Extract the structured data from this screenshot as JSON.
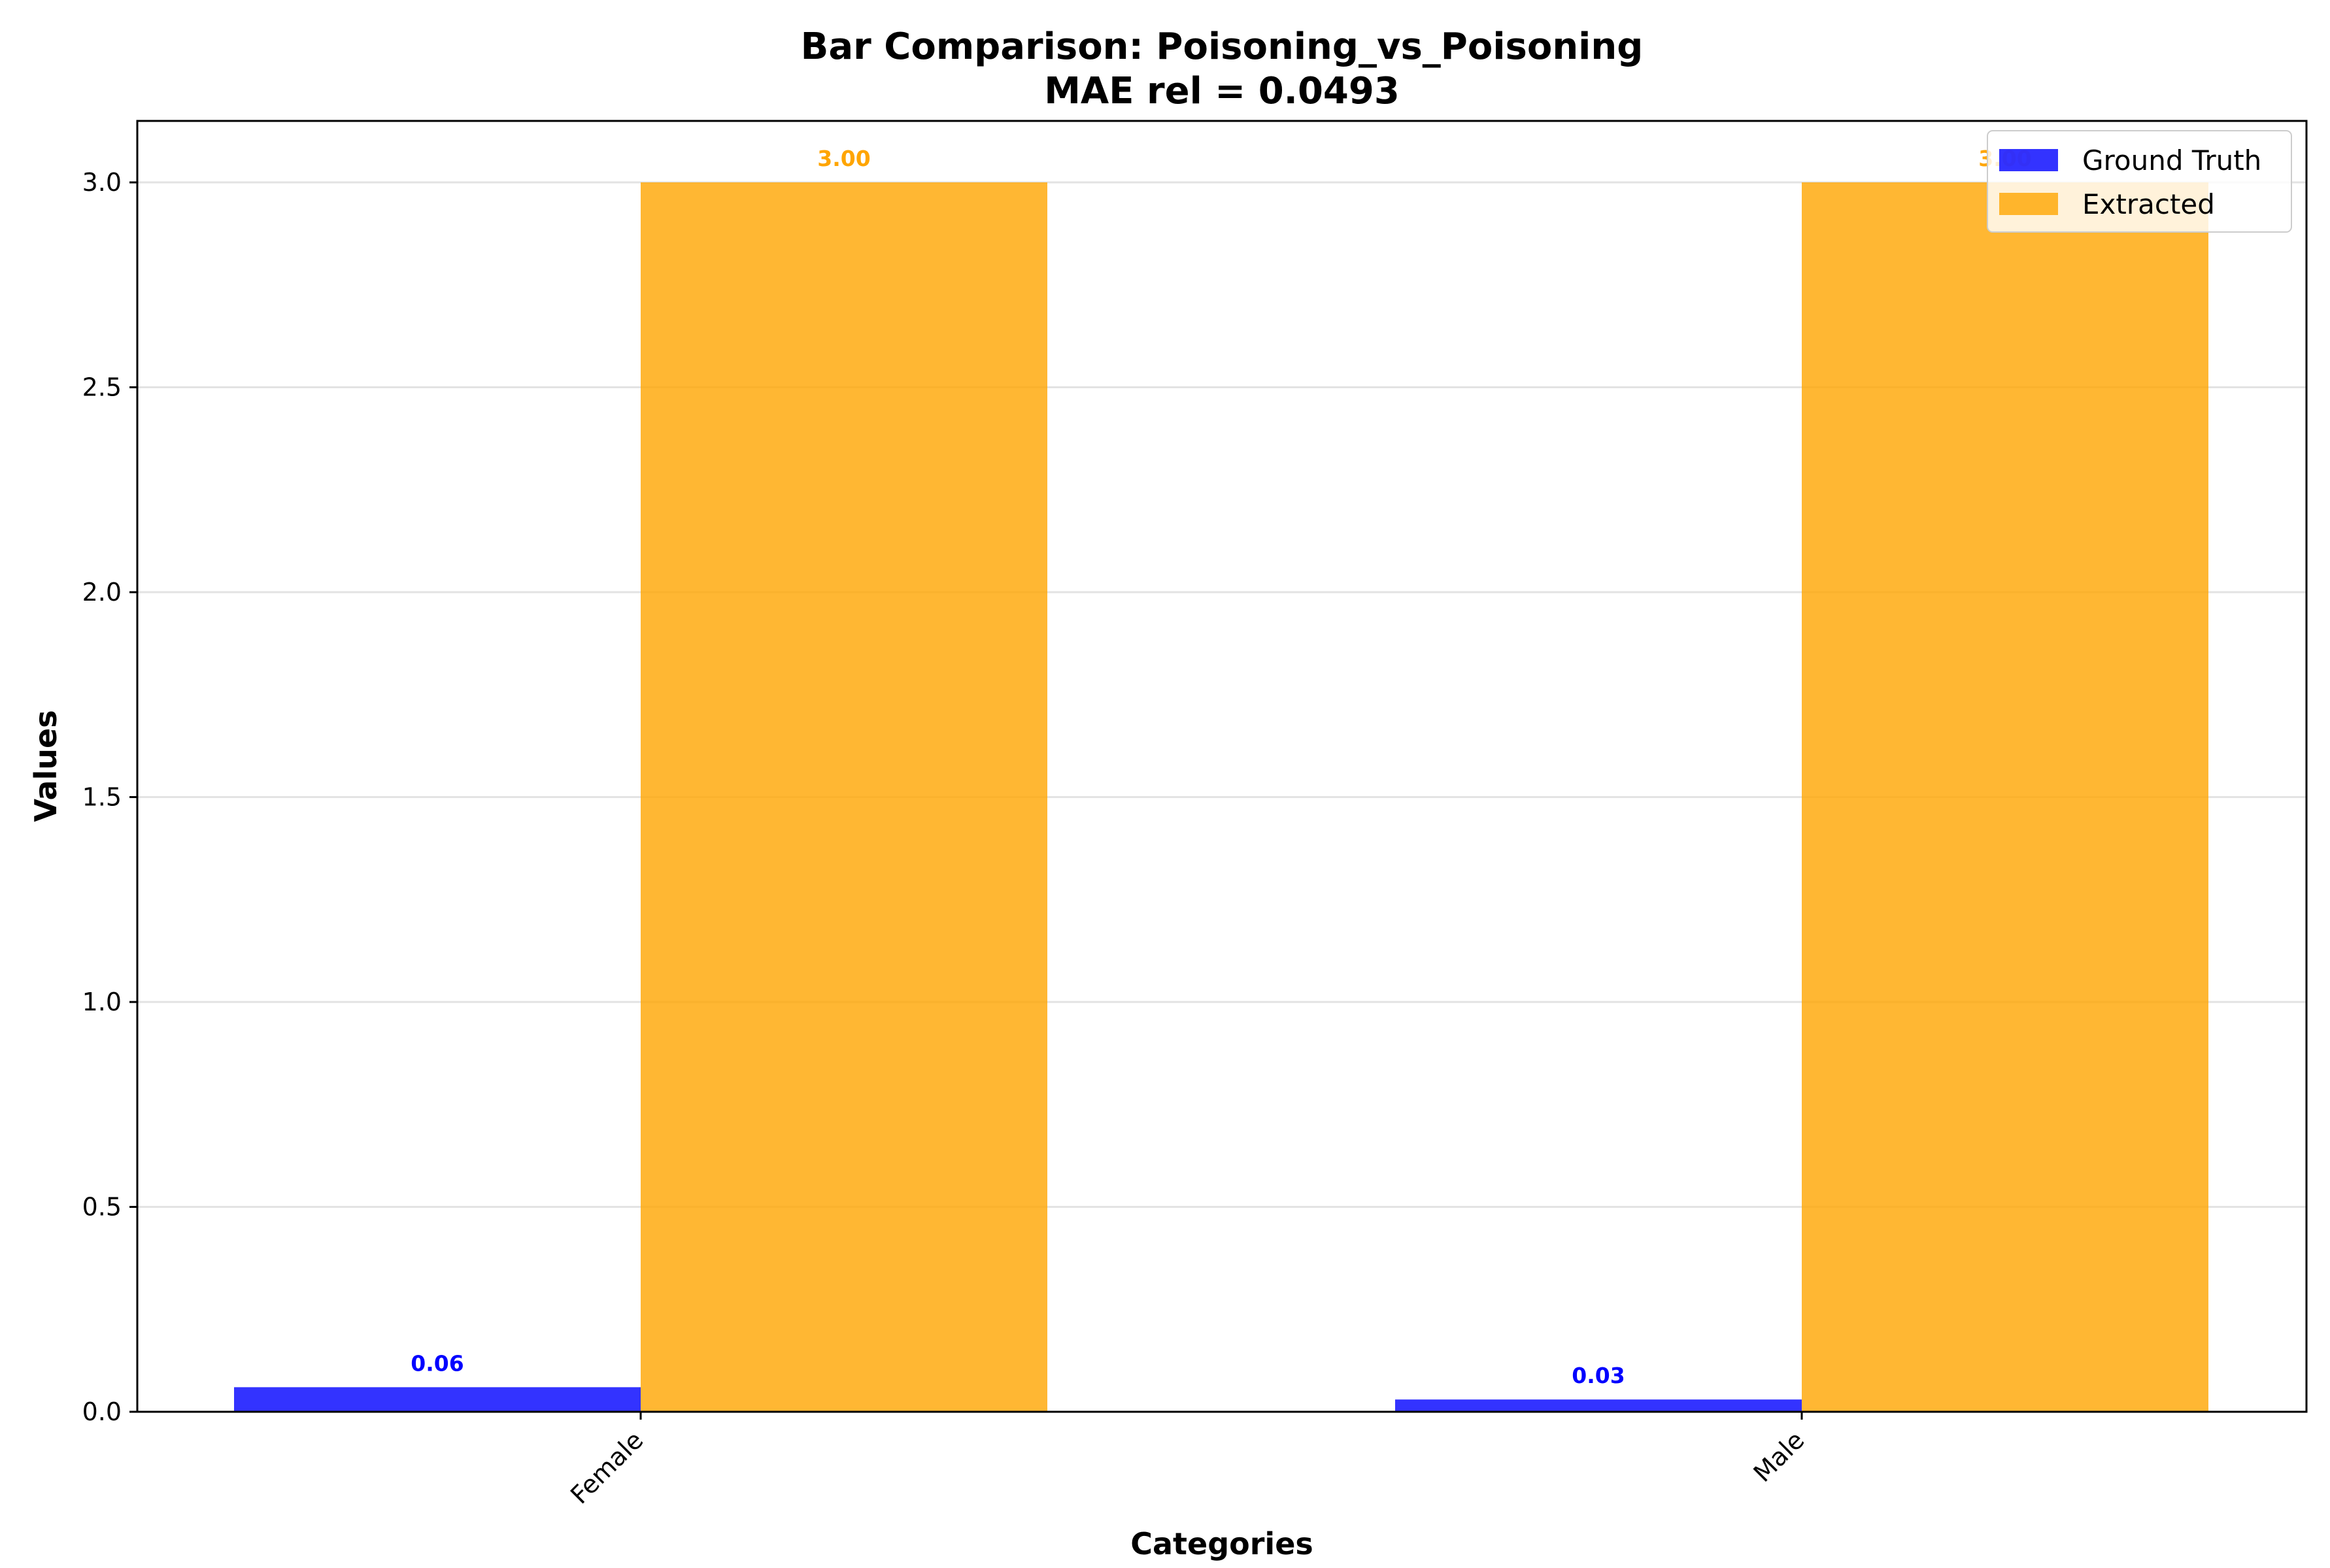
{
  "chart_data": {
    "type": "bar",
    "title": "Bar Comparison: Poisoning_vs_Poisoning",
    "subtitle": "MAE rel = 0.0493",
    "xlabel": "Categories",
    "ylabel": "Values",
    "categories": [
      "Female",
      "Male"
    ],
    "series": [
      {
        "name": "Ground Truth",
        "values": [
          0.06,
          0.03
        ],
        "labels": [
          "0.06",
          "0.03"
        ],
        "color": "#0000ff"
      },
      {
        "name": "Extracted",
        "values": [
          3.0,
          3.0
        ],
        "labels": [
          "3.00",
          "3.00"
        ],
        "color": "#ffa500"
      }
    ],
    "ylim": [
      0,
      3.15
    ],
    "yticks": [
      0.0,
      0.5,
      1.0,
      1.5,
      2.0,
      2.5,
      3.0
    ],
    "ytick_labels": [
      "0.0",
      "0.5",
      "1.0",
      "1.5",
      "2.0",
      "2.5",
      "3.0"
    ],
    "grid": "y",
    "legend_position": "top-right"
  }
}
